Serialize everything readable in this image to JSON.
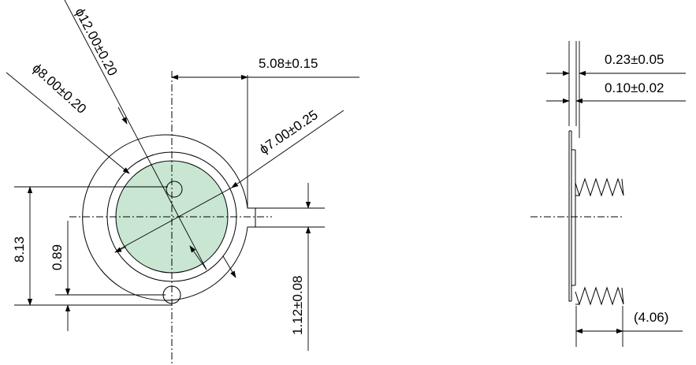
{
  "front_view": {
    "dia_outer": "ϕ12.00±0.20",
    "dia_middle": "ϕ8.00±0.20",
    "dia_inner": "ϕ7.00±0.25",
    "offset_h": "5.08±0.15",
    "height_total": "8.13",
    "height_hole": "0.89",
    "slot_width": "1.12±0.08"
  },
  "side_view": {
    "thickness_1": "0.23±0.05",
    "thickness_2": "0.10±0.02",
    "spring_length": "(4.06)"
  },
  "colors": {
    "fill": "#c8e6d2",
    "line": "#000000"
  }
}
